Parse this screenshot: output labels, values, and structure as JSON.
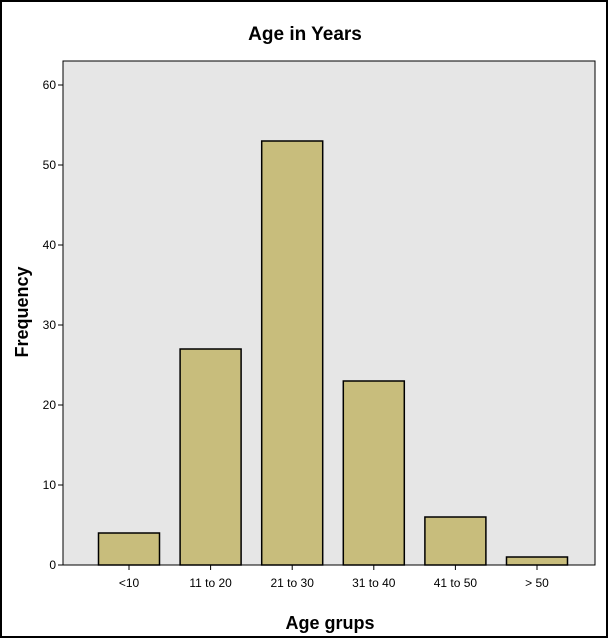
{
  "chart_data": {
    "type": "bar",
    "title": "Age in Years",
    "xlabel": "Age grups",
    "ylabel": "Frequency",
    "categories": [
      "<10",
      "11 to 20",
      "21 to 30",
      "31 to 40",
      "41 to 50",
      "> 50"
    ],
    "values": [
      4,
      27,
      53,
      23,
      6,
      1
    ],
    "ylim": [
      0,
      63
    ],
    "yticks": [
      0,
      10,
      20,
      30,
      40,
      50,
      60
    ],
    "grid": false,
    "colors": {
      "bar_fill": "#C8BD7C",
      "bar_stroke": "#000000",
      "plot_background": "#E6E6E6"
    }
  }
}
